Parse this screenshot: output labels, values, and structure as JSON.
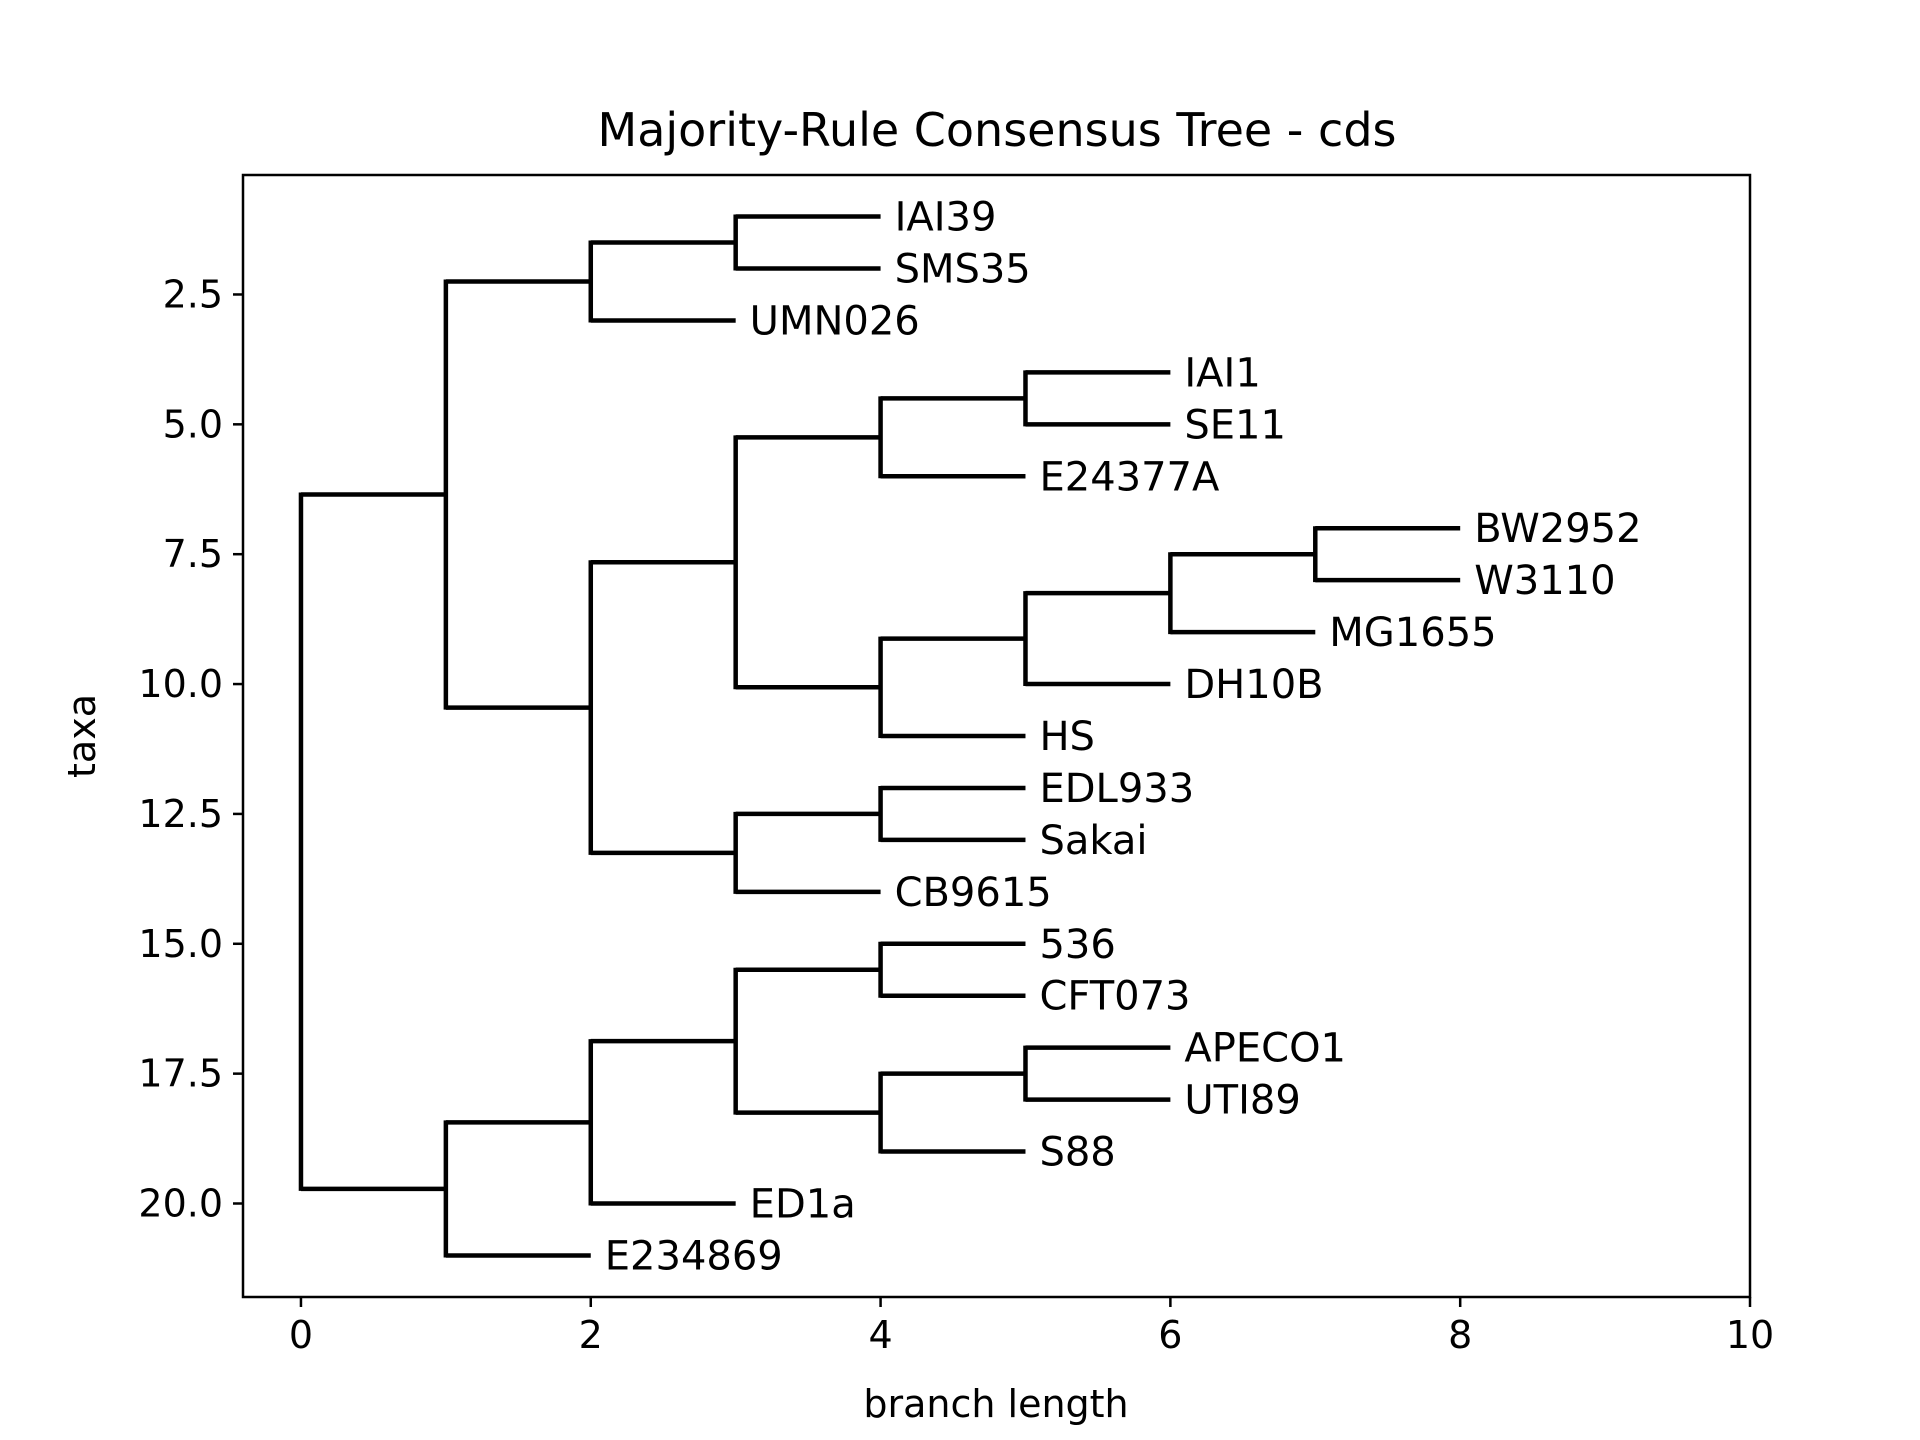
{
  "chart_data": {
    "type": "dendrogram",
    "title": "Majority-Rule Consensus Tree - cds",
    "xlabel": "branch length",
    "ylabel": "taxa",
    "xlim": [
      -0.4,
      10
    ],
    "ylim": [
      21.8,
      0.2
    ],
    "y_inverted": true,
    "grid": false,
    "legend": "none",
    "xticks": [
      0,
      2,
      4,
      6,
      8,
      10
    ],
    "yticks": [
      2.5,
      5.0,
      7.5,
      10.0,
      12.5,
      15.0,
      17.5,
      20.0
    ],
    "leaves": [
      {
        "name": "IAI39",
        "x": 4,
        "y": 1
      },
      {
        "name": "SMS35",
        "x": 4,
        "y": 2
      },
      {
        "name": "UMN026",
        "x": 3,
        "y": 3
      },
      {
        "name": "IAI1",
        "x": 6,
        "y": 4
      },
      {
        "name": "SE11",
        "x": 6,
        "y": 5
      },
      {
        "name": "E24377A",
        "x": 5,
        "y": 6
      },
      {
        "name": "BW2952",
        "x": 8,
        "y": 7
      },
      {
        "name": "W3110",
        "x": 8,
        "y": 8
      },
      {
        "name": "MG1655",
        "x": 7,
        "y": 9
      },
      {
        "name": "DH10B",
        "x": 6,
        "y": 10
      },
      {
        "name": "HS",
        "x": 5,
        "y": 11
      },
      {
        "name": "EDL933",
        "x": 5,
        "y": 12
      },
      {
        "name": "Sakai",
        "x": 5,
        "y": 13
      },
      {
        "name": "CB9615",
        "x": 4,
        "y": 14
      },
      {
        "name": "536",
        "x": 5,
        "y": 15
      },
      {
        "name": "CFT073",
        "x": 5,
        "y": 16
      },
      {
        "name": "APECO1",
        "x": 6,
        "y": 17
      },
      {
        "name": "UTI89",
        "x": 6,
        "y": 18
      },
      {
        "name": "S88",
        "x": 5,
        "y": 19
      },
      {
        "name": "ED1a",
        "x": 3,
        "y": 20
      },
      {
        "name": "E234869",
        "x": 2,
        "y": 21
      }
    ],
    "internal_nodes": [
      {
        "x": 3,
        "y": 1.5,
        "parent_x": 2
      },
      {
        "x": 2,
        "y": 2.25,
        "parent_x": 1
      },
      {
        "x": 5,
        "y": 4.5,
        "parent_x": 4
      },
      {
        "x": 4,
        "y": 5.25,
        "parent_x": 3
      },
      {
        "x": 7,
        "y": 7.5,
        "parent_x": 6
      },
      {
        "x": 6,
        "y": 8.25,
        "parent_x": 5
      },
      {
        "x": 5,
        "y": 9.125,
        "parent_x": 4
      },
      {
        "x": 4,
        "y": 10.0625,
        "parent_x": 3
      },
      {
        "x": 3,
        "y": 7.65625,
        "parent_x": 2
      },
      {
        "x": 4,
        "y": 12.5,
        "parent_x": 3
      },
      {
        "x": 3,
        "y": 13.25,
        "parent_x": 2
      },
      {
        "x": 2,
        "y": 10.453125,
        "parent_x": 1
      },
      {
        "x": 1,
        "y": 6.3515625,
        "parent_x": 0
      },
      {
        "x": 4,
        "y": 15.5,
        "parent_x": 3
      },
      {
        "x": 5,
        "y": 17.5,
        "parent_x": 4
      },
      {
        "x": 4,
        "y": 18.25,
        "parent_x": 3
      },
      {
        "x": 3,
        "y": 16.875,
        "parent_x": 2
      },
      {
        "x": 2,
        "y": 18.4375,
        "parent_x": 1
      },
      {
        "x": 1,
        "y": 19.71875,
        "parent_x": 0
      },
      {
        "x": 0,
        "y": 13.03515625,
        "parent_x": null
      }
    ],
    "vertical_connectors": [
      {
        "x": 3,
        "y1": 1,
        "y2": 2
      },
      {
        "x": 2,
        "y1": 1.5,
        "y2": 3
      },
      {
        "x": 5,
        "y1": 4,
        "y2": 5
      },
      {
        "x": 4,
        "y1": 4.5,
        "y2": 6
      },
      {
        "x": 7,
        "y1": 7,
        "y2": 8
      },
      {
        "x": 6,
        "y1": 7.5,
        "y2": 9
      },
      {
        "x": 5,
        "y1": 8.25,
        "y2": 10
      },
      {
        "x": 4,
        "y1": 9.125,
        "y2": 11
      },
      {
        "x": 3,
        "y1": 5.25,
        "y2": 10.0625
      },
      {
        "x": 4,
        "y1": 12,
        "y2": 13
      },
      {
        "x": 3,
        "y1": 12.5,
        "y2": 14
      },
      {
        "x": 2,
        "y1": 7.65625,
        "y2": 13.25
      },
      {
        "x": 1,
        "y1": 2.25,
        "y2": 10.453125
      },
      {
        "x": 4,
        "y1": 15,
        "y2": 16
      },
      {
        "x": 5,
        "y1": 17,
        "y2": 18
      },
      {
        "x": 4,
        "y1": 17.5,
        "y2": 19
      },
      {
        "x": 3,
        "y1": 15.5,
        "y2": 18.25
      },
      {
        "x": 2,
        "y1": 16.875,
        "y2": 20
      },
      {
        "x": 1,
        "y1": 18.4375,
        "y2": 21
      },
      {
        "x": 0,
        "y1": 6.3515625,
        "y2": 19.71875
      }
    ],
    "colors": {
      "lines": "#000000",
      "background": "#ffffff"
    }
  }
}
